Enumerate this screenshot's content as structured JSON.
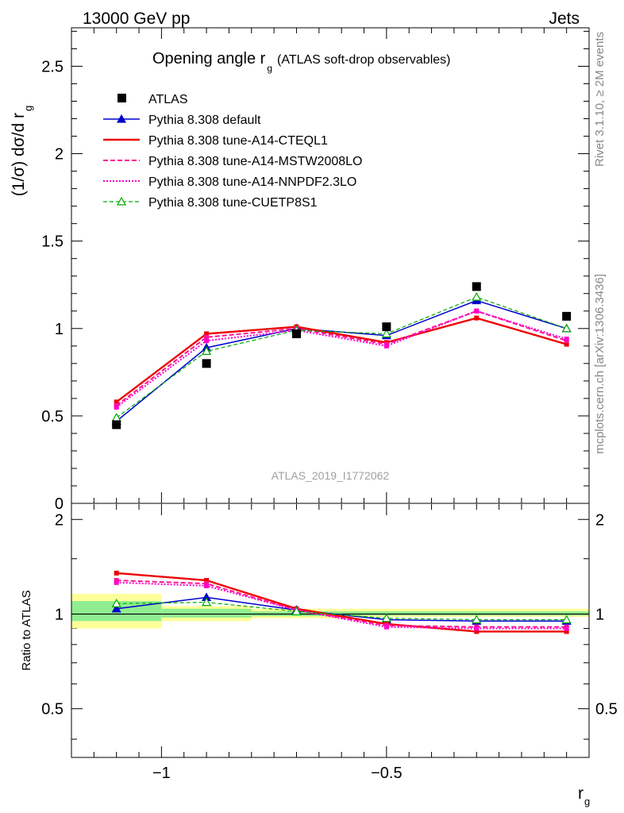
{
  "header": {
    "energy_label": "13000 GeV pp",
    "process_label": "Jets",
    "side_label_top": "Rivet 3.1.10, ≥ 2M events",
    "side_label_bottom": "mcplots.cern.ch [arXiv:1306.3436]",
    "watermark": "ATLAS_2019_I1772062"
  },
  "chart_data": {
    "type": "line",
    "title": "Opening angle r",
    "title_subscript": "g",
    "title_suffix": "(ATLAS soft-drop observables)",
    "ylabel": "(1/σ) dσ/d r",
    "ylabel_subscript": "g",
    "xlabel": "r",
    "xlabel_subscript": "g",
    "ratio_ylabel": "Ratio to ATLAS",
    "xlim": [
      -1.2,
      -0.05
    ],
    "ylim": [
      0,
      2.72
    ],
    "ratio_ylim": [
      0.35,
      2.25
    ],
    "x_ticks": [
      {
        "value": -1,
        "label": "−1"
      },
      {
        "value": -0.5,
        "label": "−0.5"
      }
    ],
    "y_ticks": [
      {
        "value": 0,
        "label": "0"
      },
      {
        "value": 0.5,
        "label": "0.5"
      },
      {
        "value": 1,
        "label": "1"
      },
      {
        "value": 1.5,
        "label": "1.5"
      },
      {
        "value": 2,
        "label": "2"
      },
      {
        "value": 2.5,
        "label": "2.5"
      }
    ],
    "ratio_ticks": [
      {
        "value": 0.5,
        "label": "0.5"
      },
      {
        "value": 1,
        "label": "1"
      },
      {
        "value": 2,
        "label": "2"
      }
    ],
    "x": [
      -1.1,
      -0.9,
      -0.7,
      -0.5,
      -0.3,
      -0.1
    ],
    "data": {
      "name": "ATLAS",
      "values": [
        0.45,
        0.8,
        0.97,
        1.01,
        1.24,
        1.07
      ]
    },
    "band": {
      "edges": [
        -1.2,
        -1.0,
        -0.8,
        -0.6,
        -0.4,
        -0.2,
        -0.05
      ],
      "yellow": [
        [
          0.9,
          1.16
        ],
        [
          0.95,
          1.06
        ],
        [
          0.97,
          1.04
        ],
        [
          0.98,
          1.04
        ],
        [
          0.98,
          1.04
        ],
        [
          0.98,
          1.04
        ]
      ],
      "green": [
        [
          0.95,
          1.1
        ],
        [
          0.975,
          1.04
        ],
        [
          0.985,
          1.02
        ],
        [
          0.99,
          1.02
        ],
        [
          0.99,
          1.02
        ],
        [
          0.99,
          1.02
        ]
      ]
    },
    "series": [
      {
        "name": "Pythia 8.308 default",
        "color": "#0000cc",
        "dash": "",
        "width": 1.5,
        "marker": "triangle-filled",
        "values": [
          0.47,
          0.89,
          1.0,
          0.96,
          1.16,
          1.0
        ],
        "ratio": [
          1.04,
          1.13,
          1.03,
          0.96,
          0.95,
          0.95
        ]
      },
      {
        "name": "Pythia 8.308 tune-A14-CTEQL1",
        "color": "#ee0000",
        "dash": "",
        "width": 2.4,
        "marker": "tick",
        "values": [
          0.58,
          0.97,
          1.01,
          0.92,
          1.06,
          0.91
        ],
        "ratio": [
          1.35,
          1.28,
          1.04,
          0.93,
          0.88,
          0.88
        ]
      },
      {
        "name": "Pythia 8.308 tune-A14-MSTW2008LO",
        "color": "#ff1493",
        "dash": "6,3",
        "width": 2.0,
        "marker": "tick",
        "values": [
          0.56,
          0.95,
          1.0,
          0.91,
          1.1,
          0.93
        ],
        "ratio": [
          1.28,
          1.25,
          1.03,
          0.92,
          0.91,
          0.91
        ]
      },
      {
        "name": "Pythia 8.308 tune-A14-NNPDF2.3LO",
        "color": "#ff00cc",
        "dash": "2,2",
        "width": 2.0,
        "marker": "tick",
        "values": [
          0.55,
          0.93,
          0.99,
          0.9,
          1.1,
          0.94
        ],
        "ratio": [
          1.26,
          1.23,
          1.03,
          0.91,
          0.9,
          0.9
        ]
      },
      {
        "name": "Pythia 8.308 tune-CUETP8S1",
        "color": "#00aa00",
        "dash": "5,3",
        "width": 1.2,
        "marker": "triangle-open",
        "values": [
          0.49,
          0.87,
          0.99,
          0.97,
          1.18,
          1.0
        ],
        "ratio": [
          1.08,
          1.09,
          1.02,
          0.97,
          0.96,
          0.96
        ]
      }
    ]
  }
}
